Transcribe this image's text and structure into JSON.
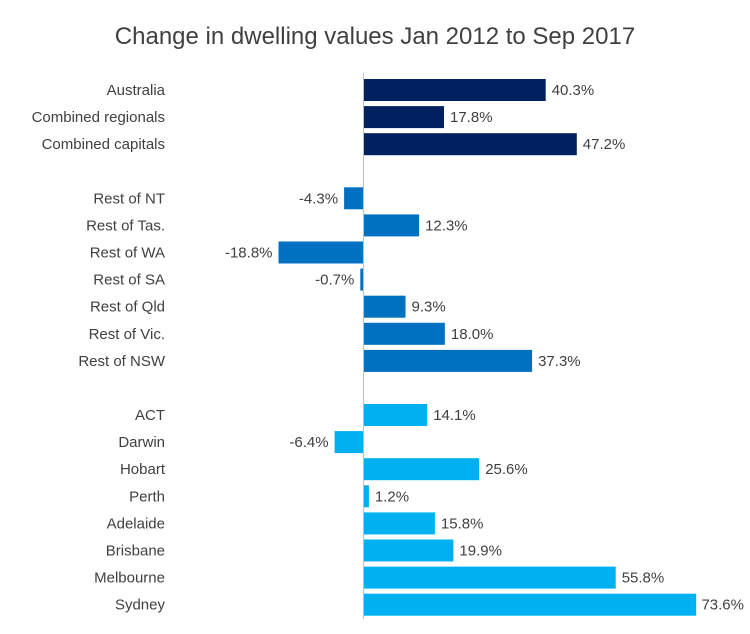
{
  "chart_data": {
    "type": "bar",
    "orientation": "horizontal",
    "title": "Change in dwelling values Jan 2012 to Sep 2017",
    "xlabel": "",
    "ylabel": "",
    "value_suffix": "%",
    "grid": false,
    "legend": "none",
    "groups": [
      {
        "color": "#002060",
        "categories": [
          "Australia",
          "Combined regionals",
          "Combined capitals"
        ],
        "values": [
          40.3,
          17.8,
          47.2
        ]
      },
      {
        "color": "#0070C0",
        "categories": [
          "Rest of NT",
          "Rest of Tas.",
          "Rest of WA",
          "Rest of SA",
          "Rest of Qld",
          "Rest of Vic.",
          "Rest of NSW"
        ],
        "values": [
          -4.3,
          12.3,
          -18.8,
          -0.7,
          9.3,
          18.0,
          37.3
        ]
      },
      {
        "color": "#00B0F0",
        "categories": [
          "ACT",
          "Darwin",
          "Hobart",
          "Perth",
          "Adelaide",
          "Brisbane",
          "Melbourne",
          "Sydney"
        ],
        "values": [
          14.1,
          -6.4,
          25.6,
          1.2,
          15.8,
          19.9,
          55.8,
          73.6
        ]
      }
    ],
    "axis_color": "#BFBFBF",
    "label_color": "#404040"
  }
}
